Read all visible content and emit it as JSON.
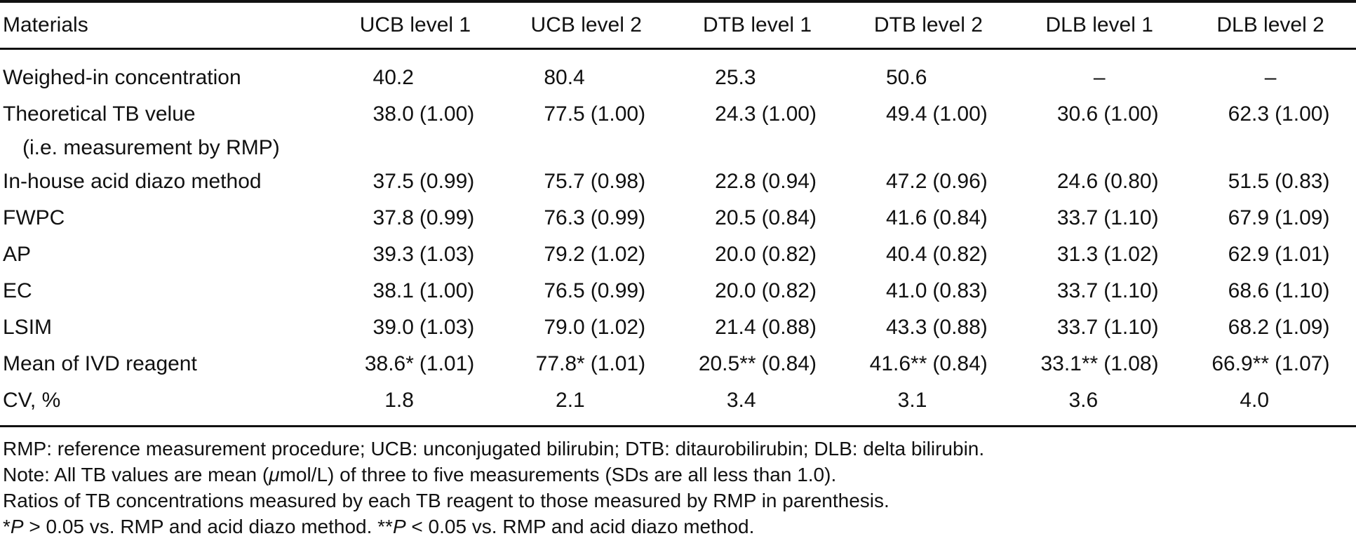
{
  "table": {
    "columns": [
      "Materials",
      "UCB level 1",
      "UCB level 2",
      "DTB level 1",
      "DTB level 2",
      "DLB level 1",
      "DLB level 2"
    ],
    "rows": [
      {
        "label": "Weighed-in concentration",
        "cells": [
          "40.2",
          "80.4",
          "25.3",
          "50.6",
          "–",
          "–"
        ]
      },
      {
        "label": "Theoretical TB velue",
        "label2": "(i.e. measurement by RMP)",
        "cells": [
          "38.0 (1.00)",
          "77.5 (1.00)",
          "24.3 (1.00)",
          "49.4 (1.00)",
          "30.6 (1.00)",
          "62.3 (1.00)"
        ]
      },
      {
        "label": "In-house acid diazo method",
        "cells": [
          "37.5 (0.99)",
          "75.7 (0.98)",
          "22.8 (0.94)",
          "47.2 (0.96)",
          "24.6 (0.80)",
          "51.5 (0.83)"
        ]
      },
      {
        "label": "FWPC",
        "cells": [
          "37.8 (0.99)",
          "76.3 (0.99)",
          "20.5 (0.84)",
          "41.6 (0.84)",
          "33.7 (1.10)",
          "67.9 (1.09)"
        ]
      },
      {
        "label": "AP",
        "cells": [
          "39.3 (1.03)",
          "79.2 (1.02)",
          "20.0 (0.82)",
          "40.4 (0.82)",
          "31.3 (1.02)",
          "62.9 (1.01)"
        ]
      },
      {
        "label": "EC",
        "cells": [
          "38.1 (1.00)",
          "76.5 (0.99)",
          "20.0 (0.82)",
          "41.0 (0.83)",
          "33.7 (1.10)",
          "68.6 (1.10)"
        ]
      },
      {
        "label": "LSIM",
        "cells": [
          "39.0 (1.03)",
          "79.0 (1.02)",
          "21.4 (0.88)",
          "43.3 (0.88)",
          "33.7 (1.10)",
          "68.2 (1.09)"
        ]
      },
      {
        "label": "Mean of IVD reagent",
        "cells": [
          "38.6* (1.01)",
          "77.8* (1.01)",
          "20.5** (0.84)",
          "41.6** (0.84)",
          "33.1** (1.08)",
          "66.9** (1.07)"
        ]
      },
      {
        "label": "CV, %",
        "cells": [
          "1.8",
          "2.1",
          "3.4",
          "3.1",
          "3.6",
          "4.0"
        ]
      }
    ]
  },
  "footnotes": [
    {
      "segments": [
        {
          "text": "RMP: reference measurement procedure; UCB: unconjugated bilirubin; DTB: ditaurobilirubin; DLB: delta bilirubin."
        }
      ]
    },
    {
      "segments": [
        {
          "text": "Note: All TB values are mean ("
        },
        {
          "text": "μ",
          "italic": true
        },
        {
          "text": "mol/L) of three to five measurements (SDs are all less than 1.0)."
        }
      ]
    },
    {
      "segments": [
        {
          "text": "Ratios of TB concentrations measured by each TB reagent to those measured by RMP in parenthesis."
        }
      ]
    },
    {
      "segments": [
        {
          "text": "*"
        },
        {
          "text": "P",
          "italic": true
        },
        {
          "text": " > 0.05 vs. RMP and acid diazo method. **"
        },
        {
          "text": "P",
          "italic": true
        },
        {
          "text": " < 0.05 vs. RMP and acid diazo method."
        }
      ]
    }
  ]
}
